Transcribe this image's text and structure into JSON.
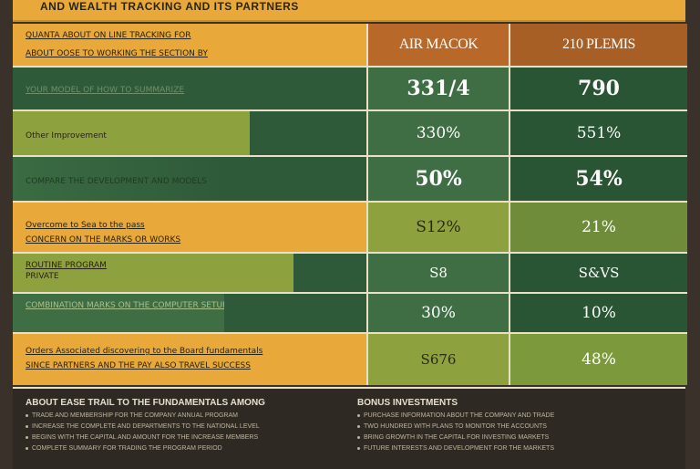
{
  "header": {
    "title": "AND WEALTH TRACKING AND ITS PARTNERS",
    "col1": "AIR MACOK",
    "col2": "210 PLEMIS",
    "lab1": "QUANTA ABOUT ON LINE TRACKING FOR",
    "lab2": "ABOUT OOSE TO WORKING THE SECTION BY"
  },
  "rows": [
    {
      "t1": "YOUR MODEL OF HOW TO SUMMARIZE",
      "t2": "",
      "v1": "331/4",
      "v2": "790"
    },
    {
      "t1": "Other Improvement",
      "t2": "",
      "v1": "330%",
      "v2": "551%"
    },
    {
      "t1": "COMPARE THE DEVELOPMENT AND MODELS",
      "t2": "",
      "v1": "50%",
      "v2": "54%"
    },
    {
      "t1": "Overcome to Sea to the pass",
      "t2": "CONCERN ON THE MARKS OR WORKS",
      "v1": "S12%",
      "v2": "21%"
    },
    {
      "t1": "ROUTINE PROGRAM",
      "t2": "PRIVATE",
      "v1": "S8",
      "v2": "S&VS"
    },
    {
      "t1": "COMBINATION MARKS ON THE COMPUTER SETUP",
      "t2": "",
      "v1": "30%",
      "v2": "10%"
    },
    {
      "t1": "Orders Associated discovering to the Board fundamentals",
      "t2": "SINCE PARTNERS AND THE PAY ALSO TRAVEL SUCCESS",
      "v1": "S676",
      "v2": "48%"
    }
  ],
  "footer": {
    "left_title": "ABOUT EASE TRAIL TO THE FUNDAMENTALS AMONG",
    "left_lines": [
      "TRADE AND MEMBERSHIP FOR THE COMPANY ANNUAL PROGRAM",
      "INCREASE THE COMPLETE AND DEPARTMENTS TO THE NATIONAL LEVEL",
      "BEGINS WITH THE CAPITAL AND AMOUNT FOR THE INCREASE MEMBERS",
      "COMPLETE SUMMARY FOR TRADING THE PROGRAM PERIOD"
    ],
    "right_title": "BONUS INVESTMENTS",
    "right_lines": [
      "PURCHASE INFORMATION ABOUT THE COMPANY AND TRADE",
      "TWO HUNDRED WITH PLANS TO MONITOR THE ACCOUNTS",
      "BRING GROWTH IN THE CAPITAL FOR INVESTING MARKETS",
      "FUTURE INTERESTS AND DEVELOPMENT FOR THE MARKETS"
    ]
  },
  "colors": {
    "gold": "#e8a93a",
    "dark_green": "#2f5a3a",
    "mid_green": "#3f6e3f",
    "olive": "#8da23e",
    "brown_header": "#b8692a"
  }
}
